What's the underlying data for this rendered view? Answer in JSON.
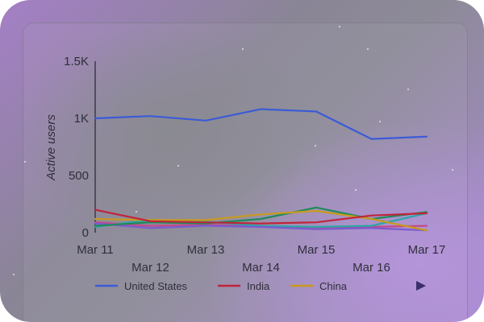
{
  "chart_data": {
    "type": "line",
    "xlabel": "",
    "ylabel": "Active users",
    "x_ticks_top": [
      "Mar 11",
      "Mar 13",
      "Mar 15",
      "Mar 17"
    ],
    "x_ticks_bottom": [
      "Mar 12",
      "Mar 14",
      "Mar 16"
    ],
    "y_ticks": [
      "0",
      "500",
      "1K",
      "1.5K"
    ],
    "ylim": [
      0,
      1500
    ],
    "x": [
      "Mar 11",
      "Mar 12",
      "Mar 13",
      "Mar 14",
      "Mar 15",
      "Mar 16",
      "Mar 17"
    ],
    "series": [
      {
        "name": "United States",
        "color": "#3b5bd6",
        "values": [
          1000,
          1020,
          980,
          1080,
          1060,
          820,
          840
        ]
      },
      {
        "name": "India",
        "color": "#c0253a",
        "values": [
          200,
          100,
          90,
          80,
          90,
          150,
          170
        ]
      },
      {
        "name": "China",
        "color": "#c79a1e",
        "values": [
          120,
          110,
          110,
          160,
          190,
          120,
          20
        ]
      },
      {
        "name": "",
        "color": "#1f8a5a",
        "values": [
          60,
          90,
          80,
          120,
          220,
          120,
          180
        ]
      },
      {
        "name": "",
        "color": "#7b5ad0",
        "values": [
          80,
          40,
          60,
          50,
          30,
          40,
          20
        ]
      },
      {
        "name": "",
        "color": "#2aa6a6",
        "values": [
          50,
          110,
          95,
          60,
          50,
          60,
          170
        ]
      },
      {
        "name": "",
        "color": "#c04a8a",
        "values": [
          90,
          60,
          70,
          55,
          45,
          50,
          60
        ]
      }
    ],
    "legend_placement": "bottom",
    "legend_items": [
      "United States",
      "India",
      "China"
    ],
    "grid": false
  },
  "legend_nav": {
    "prev_icon": "triangle-left-icon",
    "next_icon": "triangle-right-icon"
  }
}
